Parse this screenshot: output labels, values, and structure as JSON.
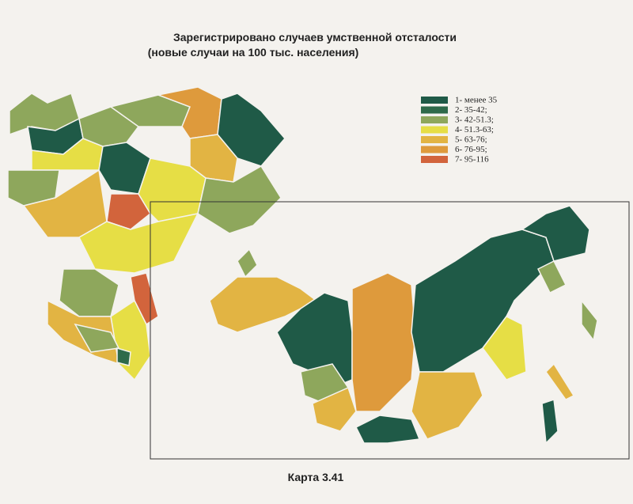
{
  "header": {
    "title": "Зарегистрировано случаев умственной отсталости",
    "subtitle": "(новые случаи на 100 тыс. населения)"
  },
  "legend": [
    {
      "label": "1- менее 35",
      "color": "#1f5a47"
    },
    {
      "label": "2- 35-42;",
      "color": "#2e6a4a"
    },
    {
      "label": "3- 42-51.3;",
      "color": "#8ea75c"
    },
    {
      "label": "4- 51.3-63;",
      "color": "#e6de45"
    },
    {
      "label": "5- 63-76;",
      "color": "#e2b443"
    },
    {
      "label": "6- 76-95;",
      "color": "#de9a3c"
    },
    {
      "label": "7- 95-116",
      "color": "#d2643c"
    }
  ],
  "caption": "Карта 3.41"
}
